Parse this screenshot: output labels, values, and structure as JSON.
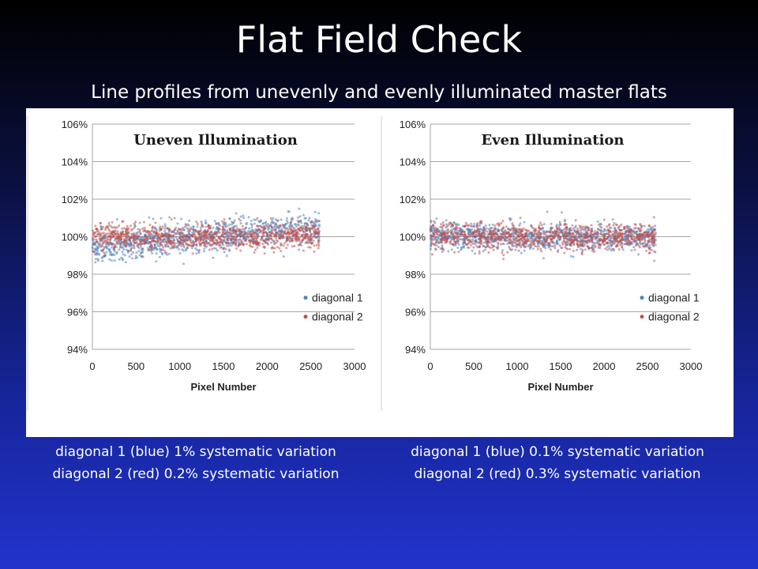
{
  "slide": {
    "title": "Flat Field Check",
    "subtitle": "Line profiles from unevenly and evenly illuminated master flats"
  },
  "captions": {
    "left": [
      "diagonal 1 (blue) 1% systematic variation",
      "diagonal 2 (red) 0.2% systematic variation"
    ],
    "right": [
      "diagonal 1 (blue) 0.1% systematic variation",
      "diagonal 2 (red) 0.3% systematic variation"
    ]
  },
  "colors": {
    "diagonal1": "#4f81bd",
    "diagonal2": "#c0504d",
    "grid": "#a6a6a6"
  },
  "chart_data": [
    {
      "type": "scatter",
      "title": "Uneven Illumination",
      "xlabel": "Pixel Number",
      "ylabel": "",
      "xlim": [
        0,
        3000
      ],
      "ylim": [
        94,
        106
      ],
      "xticks": [
        0,
        500,
        1000,
        1500,
        2000,
        2500,
        3000
      ],
      "yticks": [
        "106%",
        "104%",
        "102%",
        "100%",
        "98%",
        "96%",
        "94%"
      ],
      "grid": true,
      "legend_position": "bottom-right",
      "series": [
        {
          "name": "diagonal 1",
          "x_range": [
            0,
            2600
          ],
          "y_start": 99.5,
          "y_end": 100.5,
          "spread": 0.4
        },
        {
          "name": "diagonal 2",
          "x_range": [
            0,
            2600
          ],
          "y_start": 100.0,
          "y_end": 100.0,
          "spread": 0.35
        }
      ]
    },
    {
      "type": "scatter",
      "title": "Even Illumination",
      "xlabel": "Pixel Number",
      "ylabel": "",
      "xlim": [
        0,
        3000
      ],
      "ylim": [
        94,
        106
      ],
      "xticks": [
        0,
        500,
        1000,
        1500,
        2000,
        2500,
        3000
      ],
      "yticks": [
        "106%",
        "104%",
        "102%",
        "100%",
        "98%",
        "96%",
        "94%"
      ],
      "grid": true,
      "legend_position": "bottom-right",
      "series": [
        {
          "name": "diagonal 1",
          "x_range": [
            0,
            2600
          ],
          "y_start": 100.05,
          "y_end": 99.95,
          "spread": 0.35
        },
        {
          "name": "diagonal 2",
          "x_range": [
            0,
            2600
          ],
          "y_start": 100.0,
          "y_end": 100.0,
          "spread": 0.35
        }
      ]
    }
  ]
}
